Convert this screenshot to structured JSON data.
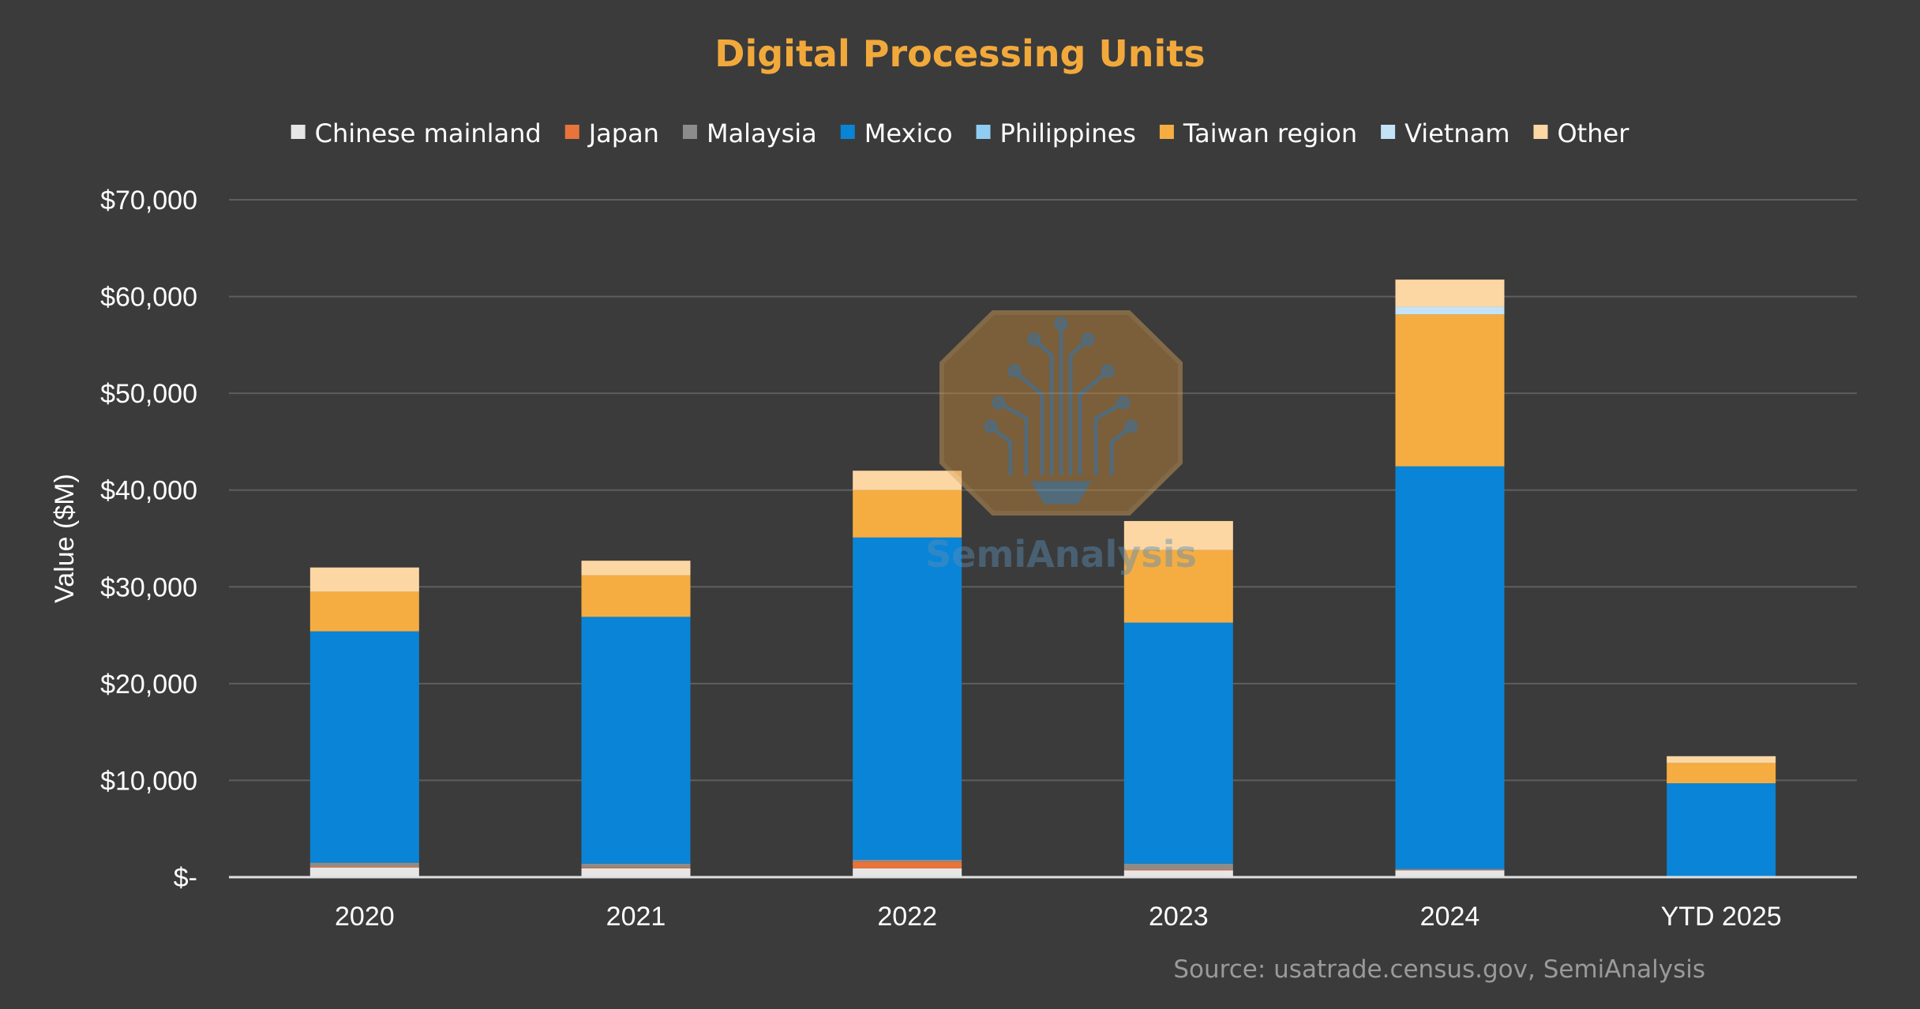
{
  "colors": {
    "background": "#3b3b3b",
    "title": "#f2a93b",
    "text": "#ffffff",
    "source": "#9a9a9a",
    "grid": "#5e5e5e",
    "baseline": "#e0e0e0"
  },
  "chart_data": {
    "type": "bar",
    "stacked": true,
    "title": "Digital Processing Units",
    "ylabel": "Value ($M)",
    "xlabel": "",
    "ylim": [
      0,
      70000
    ],
    "yticks": [
      {
        "value": 0,
        "label": "$-"
      },
      {
        "value": 10000,
        "label": "$10,000"
      },
      {
        "value": 20000,
        "label": "$20,000"
      },
      {
        "value": 30000,
        "label": "$30,000"
      },
      {
        "value": 40000,
        "label": "$40,000"
      },
      {
        "value": 50000,
        "label": "$50,000"
      },
      {
        "value": 60000,
        "label": "$60,000"
      },
      {
        "value": 70000,
        "label": "$70,000"
      }
    ],
    "grid": true,
    "legend_position": "top",
    "categories": [
      "2020",
      "2021",
      "2022",
      "2023",
      "2024",
      "YTD 2025"
    ],
    "series": [
      {
        "name": "Chinese mainland",
        "color": "#e6e6e6",
        "values": [
          1000,
          900,
          900,
          700,
          700,
          100
        ]
      },
      {
        "name": "Japan",
        "color": "#e8743b",
        "values": [
          100,
          100,
          700,
          100,
          50,
          0
        ]
      },
      {
        "name": "Malaysia",
        "color": "#8c8c8c",
        "values": [
          400,
          400,
          200,
          600,
          100,
          0
        ]
      },
      {
        "name": "Mexico",
        "color": "#0a84d6",
        "values": [
          23900,
          25500,
          33300,
          24900,
          41600,
          9600
        ]
      },
      {
        "name": "Philippines",
        "color": "#8fcdf2",
        "values": [
          0,
          0,
          0,
          0,
          0,
          0
        ]
      },
      {
        "name": "Taiwan region",
        "color": "#f5ad42",
        "values": [
          4100,
          4300,
          4900,
          7500,
          15700,
          2100
        ]
      },
      {
        "name": "Vietnam",
        "color": "#c4e3f7",
        "values": [
          0,
          0,
          0,
          0,
          800,
          0
        ]
      },
      {
        "name": "Other",
        "color": "#fcd7a3",
        "values": [
          2500,
          1500,
          2000,
          3000,
          2800,
          700
        ]
      }
    ],
    "source": "Source: usatrade.census.gov, SemiAnalysis"
  },
  "watermark": {
    "text": "SemiAnalysis",
    "icon": "circuit-tree-logo"
  }
}
